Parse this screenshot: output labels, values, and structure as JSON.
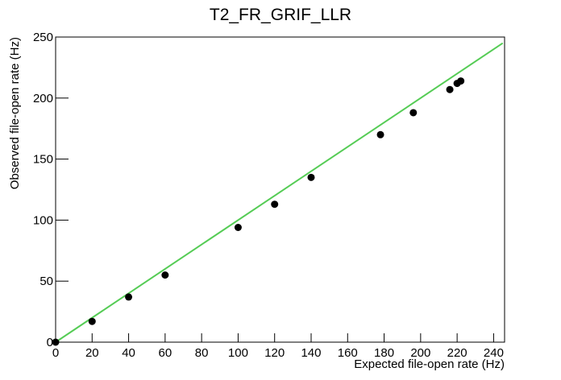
{
  "chart_data": {
    "type": "scatter",
    "title": "T2_FR_GRIF_LLR",
    "x_label": "Expected file-open rate (Hz)",
    "y_label": "Observed file-open rate (Hz)",
    "series": [
      {
        "color": "#000000",
        "x": [
          0,
          20,
          40,
          60,
          100,
          120,
          140,
          178,
          196,
          216,
          220,
          222
        ],
        "values": [
          0,
          17,
          37,
          55,
          94,
          113,
          135,
          170,
          188,
          207,
          212,
          214
        ]
      }
    ],
    "fit_line": {
      "color": "#55cc55",
      "x": [
        0,
        245
      ],
      "values": [
        0,
        245
      ]
    },
    "xlim": [
      0,
      246
    ],
    "ylim": [
      0,
      250
    ],
    "xticks": [
      0,
      20,
      40,
      60,
      80,
      100,
      120,
      140,
      160,
      180,
      200,
      220,
      240
    ],
    "yticks": [
      0,
      50,
      100,
      150,
      200,
      250
    ]
  }
}
